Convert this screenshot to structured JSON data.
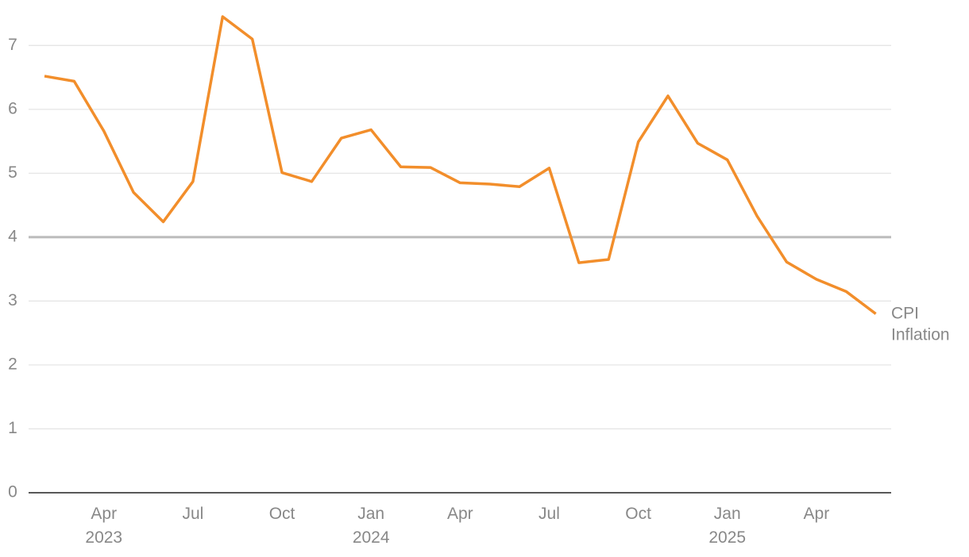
{
  "chart_data": {
    "type": "line",
    "x": [
      "2023-02",
      "2023-03",
      "2023-04",
      "2023-05",
      "2023-06",
      "2023-07",
      "2023-08",
      "2023-09",
      "2023-10",
      "2023-11",
      "2023-12",
      "2024-01",
      "2024-02",
      "2024-03",
      "2024-04",
      "2024-05",
      "2024-06",
      "2024-07",
      "2024-08",
      "2024-09",
      "2024-10",
      "2024-11",
      "2024-12",
      "2025-01",
      "2025-02",
      "2025-03",
      "2025-04",
      "2025-05",
      "2025-06"
    ],
    "series": [
      {
        "name": "CPI Inflation",
        "color": "#f28e2b",
        "values": [
          6.52,
          6.44,
          5.66,
          4.7,
          4.24,
          4.87,
          7.45,
          7.1,
          5.01,
          4.87,
          5.55,
          5.68,
          5.1,
          5.09,
          4.85,
          4.83,
          4.79,
          5.08,
          3.6,
          3.65,
          5.49,
          6.21,
          5.47,
          5.21,
          4.33,
          3.61,
          3.34,
          3.15,
          2.8
        ]
      }
    ],
    "xticks": [
      {
        "value": "2023-04",
        "label": "Apr 2023"
      },
      {
        "value": "2023-07",
        "label": "Jul"
      },
      {
        "value": "2023-10",
        "label": "Oct"
      },
      {
        "value": "2024-01",
        "label": "Jan 2024"
      },
      {
        "value": "2024-04",
        "label": "Apr"
      },
      {
        "value": "2024-07",
        "label": "Jul"
      },
      {
        "value": "2024-10",
        "label": "Oct"
      },
      {
        "value": "2025-01",
        "label": "Jan 2025"
      },
      {
        "value": "2025-04",
        "label": "Apr"
      }
    ],
    "ylim": [
      0,
      7.5
    ],
    "yticks": [
      0,
      1,
      2,
      3,
      4,
      5,
      6,
      7
    ],
    "grid": true,
    "reference_line": {
      "value": 4,
      "color": "#bbbbbb"
    }
  }
}
